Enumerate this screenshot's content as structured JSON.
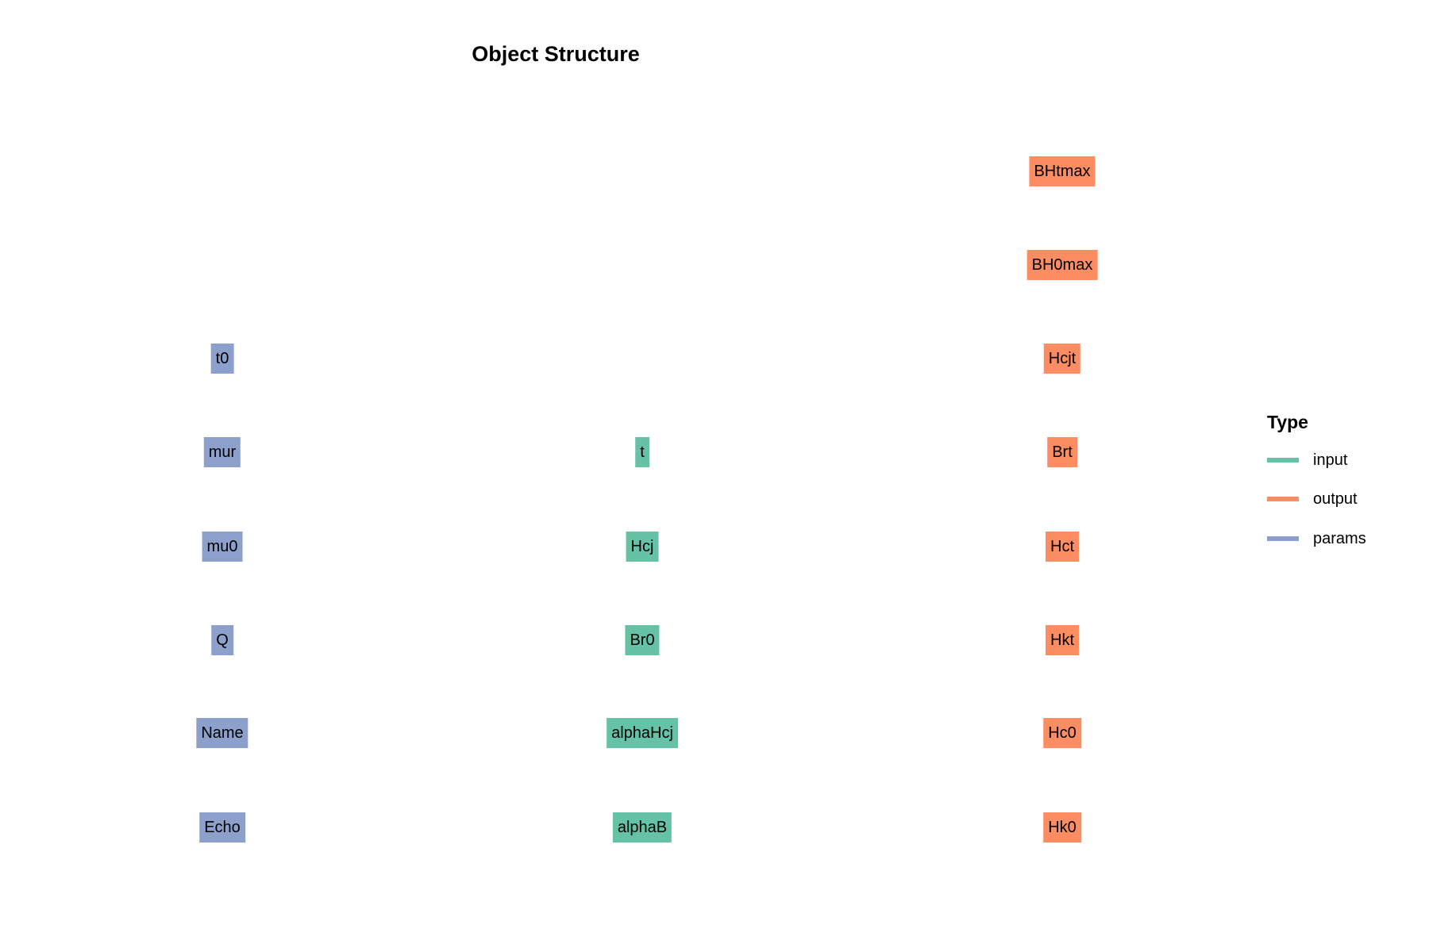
{
  "title": "Object Structure",
  "legend": {
    "title": "Type",
    "items": [
      {
        "key": "input",
        "label": "input",
        "color": "#66C2A5"
      },
      {
        "key": "output",
        "label": "output",
        "color": "#FC8D62"
      },
      {
        "key": "params",
        "label": "params",
        "color": "#8DA0CB"
      }
    ]
  },
  "nodes": {
    "params": [
      "t0",
      "mur",
      "mu0",
      "Q",
      "Name",
      "Echo"
    ],
    "input": [
      "t",
      "Hcj",
      "Br0",
      "alphaHcj",
      "alphaB"
    ],
    "output": [
      "BHtmax",
      "BH0max",
      "Hcjt",
      "Brt",
      "Hct",
      "Hkt",
      "Hc0",
      "Hk0"
    ]
  }
}
